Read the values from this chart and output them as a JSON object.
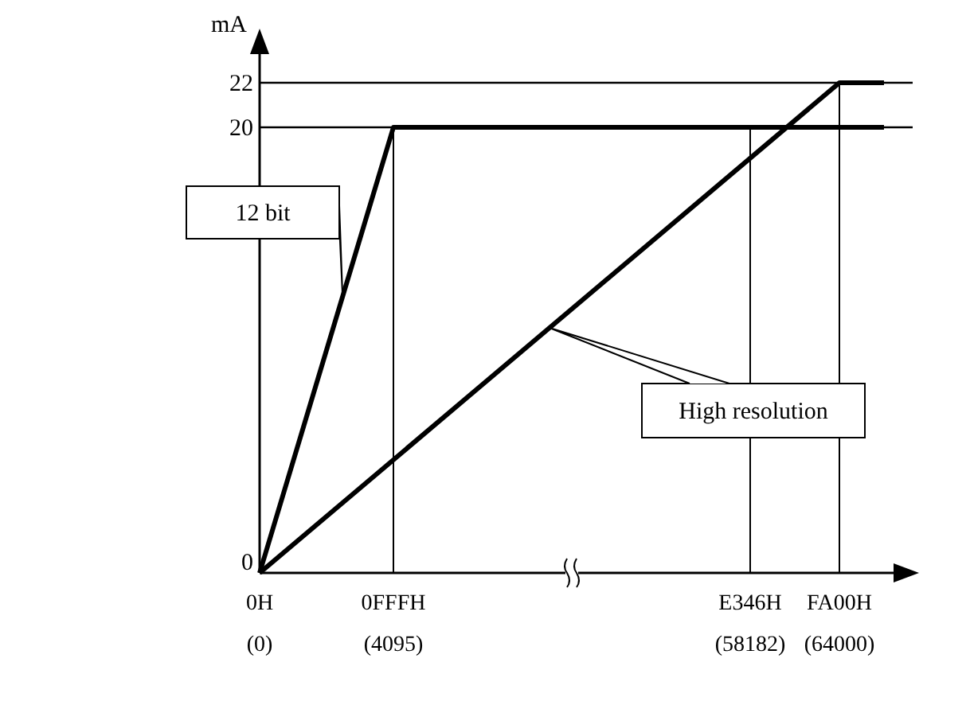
{
  "chart_data": {
    "type": "line",
    "ylabel": "mA",
    "ylim": [
      0,
      22
    ],
    "categories": [
      "0H (0)",
      null,
      null,
      "0FFFH (4095)",
      null,
      null,
      null,
      null,
      null,
      null,
      null,
      "E346H (58182)",
      null,
      "FA00H (64000)",
      null
    ],
    "yticks": [
      0,
      20,
      22
    ],
    "series": [
      {
        "name": "12 bit",
        "color": "#000000",
        "values": [
          0,
          null,
          null,
          20,
          null,
          null,
          null,
          null,
          null,
          null,
          null,
          null,
          null,
          null,
          20
        ]
      },
      {
        "name": "High resolution",
        "color": "#000000",
        "values": [
          0,
          null,
          null,
          null,
          null,
          null,
          null,
          null,
          null,
          null,
          null,
          null,
          null,
          22,
          22
        ]
      }
    ],
    "ref_lines": [
      {
        "axis": "x",
        "value": "0FFFH (4095)"
      },
      {
        "axis": "x",
        "value": "E346H (58182)"
      },
      {
        "axis": "x",
        "value": "FA00H (64000)"
      },
      {
        "axis": "y",
        "value": 20
      },
      {
        "axis": "y",
        "value": 22
      }
    ],
    "legend": false
  }
}
